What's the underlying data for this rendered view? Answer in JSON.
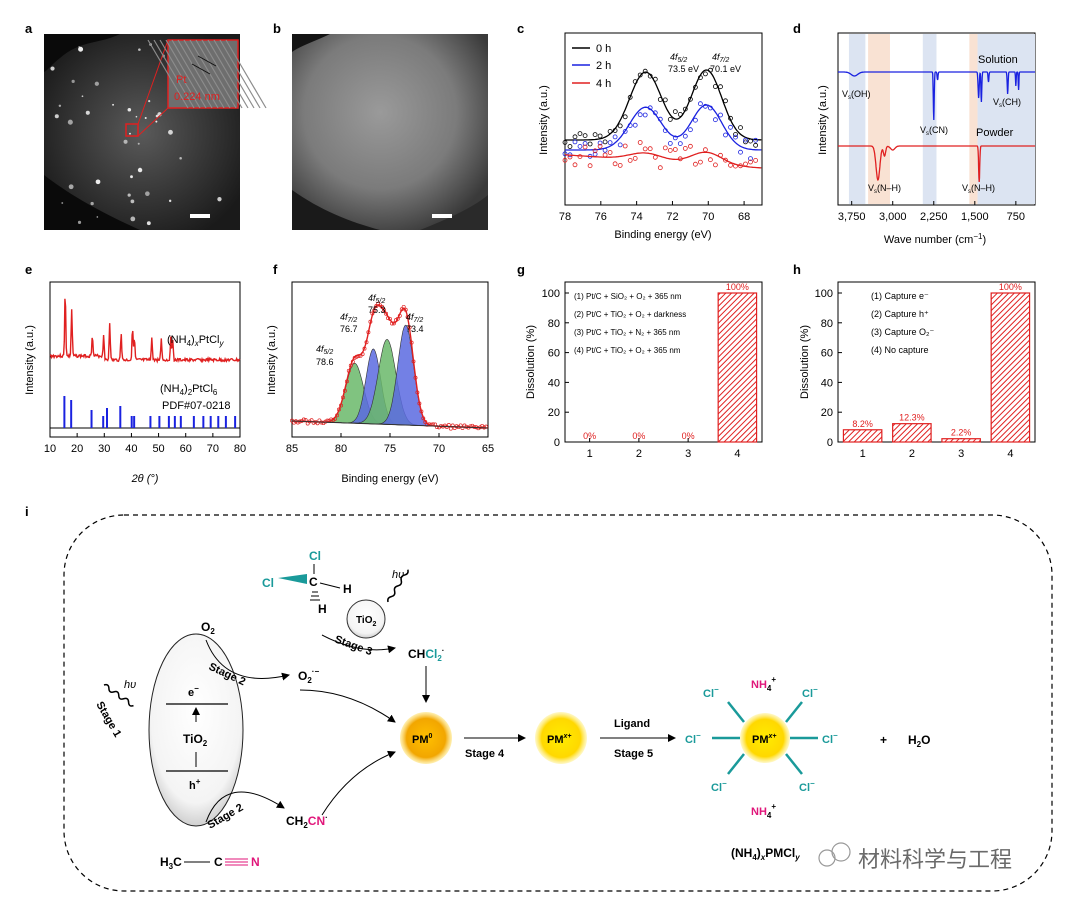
{
  "panels": {
    "a": "a",
    "b": "b",
    "c": "c",
    "d": "d",
    "e": "e",
    "f": "f",
    "g": "g",
    "h": "h",
    "i": "i"
  },
  "a": {
    "lattice_label": "Pt",
    "spacing": "0.224 nm"
  },
  "c": {
    "chart_data": {
      "type": "line",
      "xlabel": "Binding energy (eV)",
      "ylabel": "Intensity (a.u.)",
      "xlim": [
        78,
        67
      ],
      "xticks": [
        "78",
        "76",
        "74",
        "72",
        "70",
        "68"
      ],
      "series": [
        {
          "name": "0 h",
          "color": "#000000"
        },
        {
          "name": "2 h",
          "color": "#1a22e0"
        },
        {
          "name": "4 h",
          "color": "#e02020"
        }
      ],
      "peaks": [
        {
          "orb": "4f",
          "sub": "5/2",
          "energy": "73.5 eV",
          "x": 73.5
        },
        {
          "orb": "4f",
          "sub": "7/2",
          "energy": "70.1 eV",
          "x": 70.1
        }
      ]
    }
  },
  "d": {
    "chart_data": {
      "type": "line",
      "xlabel_main": "Wave number (cm",
      "xlabel_sup": "−1",
      "xlabel_end": ")",
      "ylabel": "Intensity (a.u.)",
      "xlim": [
        4000,
        400
      ],
      "xticks": [
        "3,750",
        "3,000",
        "2,250",
        "1,500",
        "750"
      ],
      "series": [
        {
          "name": "Solution",
          "color": "#1a22e0"
        },
        {
          "name": "Powder",
          "color": "#e02020"
        }
      ],
      "bands": [
        {
          "label": "OH",
          "x": 3700
        },
        {
          "label": "CN",
          "x": 2250
        },
        {
          "label": "CH",
          "x": 900
        },
        {
          "label": "N–H",
          "x": 3270
        },
        {
          "label": "N–H",
          "x": 1420
        }
      ]
    }
  },
  "e": {
    "chart_data": {
      "type": "line",
      "xlabel": "2θ (°)",
      "ylabel": "Intensity (a.u.)",
      "xlim": [
        10,
        80
      ],
      "xticks": [
        "10",
        "20",
        "30",
        "40",
        "50",
        "60",
        "70",
        "80"
      ],
      "series": [
        {
          "name": "(NH4)xPtCly",
          "color": "#e02020"
        },
        {
          "name": "(NH4)2PtCl6",
          "color": "#1a22e0"
        }
      ],
      "ref_text": "PDF#07-0218",
      "red_peaks": [
        15.6,
        18.0,
        25.6,
        29.8,
        32.0,
        36.2,
        40.4,
        41.1,
        47.5,
        51.0,
        54.5,
        55.2
      ],
      "blue_peaks": [
        15.3,
        17.8,
        25.3,
        29.6,
        31.0,
        35.9,
        40.1,
        41.0,
        47.0,
        50.3,
        53.8,
        56.0,
        58.2,
        63.0,
        66.5,
        69.2,
        72.0,
        74.8,
        78.2
      ]
    }
  },
  "f": {
    "chart_data": {
      "type": "line",
      "xlabel": "Binding energy (eV)",
      "ylabel": "Intensity (a.u.)",
      "xlim": [
        85,
        65
      ],
      "xticks": [
        "85",
        "80",
        "75",
        "70",
        "65"
      ],
      "peaks": [
        {
          "orb": "4f",
          "sub": "5/2",
          "value": "78.6",
          "x": 78.6
        },
        {
          "orb": "4f",
          "sub": "7/2",
          "value": "76.7",
          "x": 76.7
        },
        {
          "orb": "4f",
          "sub": "5/2",
          "value": "75.3",
          "x": 75.3
        },
        {
          "orb": "4f",
          "sub": "7/2",
          "value": "73.4",
          "x": 73.4
        }
      ]
    }
  },
  "g": {
    "chart_data": {
      "type": "bar",
      "ylabel": "Dissolution (%)",
      "ylim": [
        0,
        100
      ],
      "yticks": [
        "0",
        "20",
        "40",
        "60",
        "80",
        "100"
      ],
      "categories": [
        "1",
        "2",
        "3",
        "4"
      ],
      "values": [
        0,
        0,
        0,
        100
      ],
      "labels": [
        "0%",
        "0%",
        "0%",
        "100%"
      ],
      "legend": [
        "(1) Pt/C + SiO₂ + O₂ + 365 nm",
        "(2) Pt/C + TiO₂ + O₂ + darkness",
        "(3) Pt/C + TiO₂ + N₂ + 365 nm",
        "(4) Pt/C + TiO₂ + O₂ + 365 nm"
      ]
    }
  },
  "h": {
    "chart_data": {
      "type": "bar",
      "ylabel": "Dissolution (%)",
      "ylim": [
        0,
        100
      ],
      "yticks": [
        "0",
        "20",
        "40",
        "60",
        "80",
        "100"
      ],
      "categories": [
        "1",
        "2",
        "3",
        "4"
      ],
      "values": [
        8.2,
        12.3,
        2.2,
        100
      ],
      "labels": [
        "8.2%",
        "12.3%",
        "2.2%",
        "100%"
      ],
      "legend": [
        "(1) Capture e⁻",
        "(2) Capture h⁺",
        "(3) Capture O₂⁻",
        "(4) No capture"
      ]
    }
  },
  "i": {
    "stage1": "Stage 1",
    "stage2a": "Stage 2",
    "stage2b": "Stage 2",
    "stage3": "Stage 3",
    "stage4": "Stage 4",
    "stage5": "Stage 5",
    "ligand": "Ligand",
    "hv": "hυ",
    "tio2": "TiO",
    "sub2": "2",
    "electron": "e",
    "hole": "h",
    "o2": "O",
    "o2rad": "O",
    "chcl2": "CH",
    "cl2": "Cl",
    "ch2": "CH",
    "cn": "CN",
    "h3c": "H",
    "c": "C",
    "n": "N",
    "cl": "Cl",
    "h": "H",
    "pm0": "PM",
    "pm0sup": "0",
    "pmx": "PM",
    "pmxsup": "x+",
    "clm": "Cl",
    "nh4": "NH",
    "plus": "+",
    "h2o": "H",
    "product": "(NH",
    "product2": ")",
    "product3": "PMCl"
  },
  "watermark": "材料科学与工程"
}
